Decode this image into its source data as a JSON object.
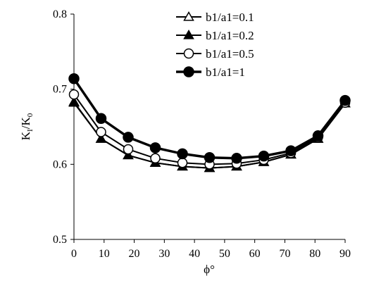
{
  "chart_data": {
    "type": "line",
    "xlabel": "ϕ°",
    "ylabel_main": "K",
    "ylabel_sub1": "I",
    "ylabel_mid": "/K",
    "ylabel_sub2": "0",
    "xlim": [
      0,
      90
    ],
    "ylim": [
      0.5,
      0.8
    ],
    "xticks": [
      "0",
      "10",
      "20",
      "30",
      "40",
      "50",
      "60",
      "70",
      "80",
      "90"
    ],
    "yticks": [
      "0.5",
      "0.6",
      "0.7",
      "0.8"
    ],
    "x": [
      0,
      9,
      18,
      27,
      36,
      45,
      54,
      63,
      72,
      81,
      90
    ],
    "grid": false,
    "legend_position": "top-center",
    "series": [
      {
        "name": "b1/a1=0.1",
        "marker": "triangle-open",
        "values": [
          0.683,
          0.634,
          0.612,
          0.602,
          0.597,
          0.595,
          0.597,
          0.603,
          0.613,
          0.634,
          0.681
        ]
      },
      {
        "name": "b1/a1=0.2",
        "marker": "triangle-filled",
        "values": [
          0.682,
          0.634,
          0.612,
          0.602,
          0.597,
          0.595,
          0.597,
          0.603,
          0.613,
          0.634,
          0.681
        ]
      },
      {
        "name": "b1/a1=0.5",
        "marker": "circle-open",
        "values": [
          0.693,
          0.643,
          0.62,
          0.608,
          0.602,
          0.6,
          0.601,
          0.606,
          0.615,
          0.636,
          0.682
        ]
      },
      {
        "name": "b1/a1=1",
        "marker": "circle-filled",
        "values": [
          0.714,
          0.661,
          0.636,
          0.622,
          0.614,
          0.609,
          0.608,
          0.611,
          0.618,
          0.638,
          0.685
        ]
      }
    ]
  }
}
